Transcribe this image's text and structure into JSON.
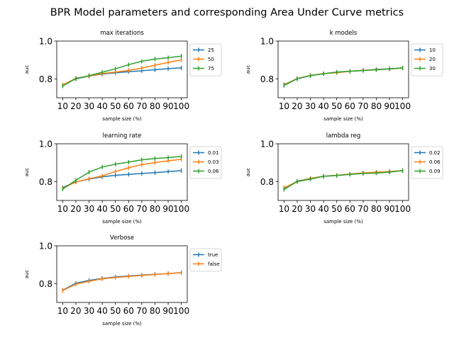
{
  "figure": {
    "title": "BPR Model parameters and corresponding Area Under Curve metrics"
  },
  "chart_data": [
    {
      "type": "line",
      "title": "max iterations",
      "xlabel": "sample size (%)",
      "ylabel": "auc",
      "x": [
        10,
        20,
        30,
        40,
        50,
        60,
        70,
        80,
        90,
        100
      ],
      "xticks": [
        "10",
        "20",
        "30",
        "40",
        "50",
        "60",
        "70",
        "80",
        "90",
        "100"
      ],
      "yticks": [
        "0.8",
        "1.0"
      ],
      "ylim": [
        0.7,
        1.0
      ],
      "legend_position": "outside-right",
      "series": [
        {
          "name": "25",
          "color": "#1f77b4",
          "values": [
            0.768,
            0.8,
            0.815,
            0.825,
            0.832,
            0.838,
            0.843,
            0.848,
            0.854,
            0.858
          ]
        },
        {
          "name": "50",
          "color": "#ff7f0e",
          "values": [
            0.768,
            0.803,
            0.815,
            0.828,
            0.836,
            0.845,
            0.857,
            0.872,
            0.887,
            0.9
          ]
        },
        {
          "name": "75",
          "color": "#2ca02c",
          "values": [
            0.762,
            0.802,
            0.817,
            0.835,
            0.853,
            0.875,
            0.893,
            0.905,
            0.912,
            0.92
          ]
        }
      ]
    },
    {
      "type": "line",
      "title": "k models",
      "xlabel": "sample size (%)",
      "ylabel": "auc",
      "x": [
        10,
        20,
        30,
        40,
        50,
        60,
        70,
        80,
        90,
        100
      ],
      "xticks": [
        "10",
        "20",
        "30",
        "40",
        "50",
        "60",
        "70",
        "80",
        "90",
        "100"
      ],
      "yticks": [
        "0.8",
        "1.0"
      ],
      "ylim": [
        0.7,
        1.0
      ],
      "legend_position": "outside-right",
      "series": [
        {
          "name": "10",
          "color": "#1f77b4",
          "values": [
            0.77,
            0.8,
            0.817,
            0.827,
            0.835,
            0.84,
            0.845,
            0.85,
            0.853,
            0.858
          ]
        },
        {
          "name": "20",
          "color": "#ff7f0e",
          "values": [
            0.768,
            0.802,
            0.818,
            0.828,
            0.832,
            0.84,
            0.845,
            0.849,
            0.853,
            0.857
          ]
        },
        {
          "name": "30",
          "color": "#2ca02c",
          "values": [
            0.765,
            0.801,
            0.817,
            0.827,
            0.836,
            0.84,
            0.844,
            0.848,
            0.853,
            0.858
          ]
        }
      ]
    },
    {
      "type": "line",
      "title": "learning rate",
      "xlabel": "sample size (%)",
      "ylabel": "auc",
      "x": [
        10,
        20,
        30,
        40,
        50,
        60,
        70,
        80,
        90,
        100
      ],
      "xticks": [
        "10",
        "20",
        "30",
        "40",
        "50",
        "60",
        "70",
        "80",
        "90",
        "100"
      ],
      "yticks": [
        "0.8",
        "1.0"
      ],
      "ylim": [
        0.7,
        1.0
      ],
      "legend_position": "outside-right",
      "series": [
        {
          "name": "0.01",
          "color": "#1f77b4",
          "values": [
            0.768,
            0.798,
            0.813,
            0.825,
            0.833,
            0.838,
            0.843,
            0.847,
            0.853,
            0.858
          ]
        },
        {
          "name": "0.03",
          "color": "#ff7f0e",
          "values": [
            0.765,
            0.797,
            0.815,
            0.83,
            0.853,
            0.873,
            0.89,
            0.9,
            0.91,
            0.918
          ]
        },
        {
          "name": "0.06",
          "color": "#2ca02c",
          "values": [
            0.76,
            0.807,
            0.85,
            0.877,
            0.892,
            0.903,
            0.915,
            0.922,
            0.927,
            0.933
          ]
        }
      ]
    },
    {
      "type": "line",
      "title": "lambda reg",
      "xlabel": "sample size (%)",
      "ylabel": "auc",
      "x": [
        10,
        20,
        30,
        40,
        50,
        60,
        70,
        80,
        90,
        100
      ],
      "xticks": [
        "10",
        "20",
        "30",
        "40",
        "50",
        "60",
        "70",
        "80",
        "90",
        "100"
      ],
      "yticks": [
        "0.8",
        "1.0"
      ],
      "ylim": [
        0.7,
        1.0
      ],
      "legend_position": "outside-right",
      "series": [
        {
          "name": "0.02",
          "color": "#1f77b4",
          "values": [
            0.763,
            0.802,
            0.817,
            0.828,
            0.832,
            0.84,
            0.845,
            0.847,
            0.853,
            0.858
          ]
        },
        {
          "name": "0.06",
          "color": "#ff7f0e",
          "values": [
            0.767,
            0.8,
            0.817,
            0.828,
            0.833,
            0.84,
            0.846,
            0.85,
            0.853,
            0.858
          ]
        },
        {
          "name": "0.09",
          "color": "#2ca02c",
          "values": [
            0.758,
            0.8,
            0.813,
            0.828,
            0.832,
            0.838,
            0.843,
            0.845,
            0.85,
            0.858
          ]
        }
      ]
    },
    {
      "type": "line",
      "title": "Verbose",
      "xlabel": "sample size (%)",
      "ylabel": "auc",
      "x": [
        10,
        20,
        30,
        40,
        50,
        60,
        70,
        80,
        90,
        100
      ],
      "xticks": [
        "10",
        "20",
        "30",
        "40",
        "50",
        "60",
        "70",
        "80",
        "90",
        "100"
      ],
      "yticks": [
        "0.8",
        "1.0"
      ],
      "ylim": [
        0.7,
        1.0
      ],
      "legend_position": "outside-right",
      "series": [
        {
          "name": "true",
          "color": "#1f77b4",
          "values": [
            0.765,
            0.802,
            0.817,
            0.827,
            0.835,
            0.84,
            0.845,
            0.849,
            0.853,
            0.858
          ]
        },
        {
          "name": "false",
          "color": "#ff7f0e",
          "values": [
            0.763,
            0.797,
            0.812,
            0.825,
            0.832,
            0.838,
            0.843,
            0.848,
            0.853,
            0.857
          ]
        }
      ]
    }
  ]
}
